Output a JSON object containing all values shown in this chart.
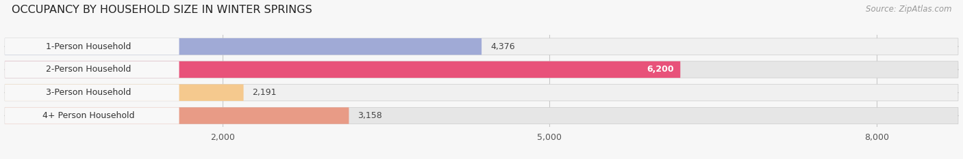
{
  "title": "OCCUPANCY BY HOUSEHOLD SIZE IN WINTER SPRINGS",
  "source": "Source: ZipAtlas.com",
  "categories": [
    "1-Person Household",
    "2-Person Household",
    "3-Person Household",
    "4+ Person Household"
  ],
  "values": [
    4376,
    6200,
    2191,
    3158
  ],
  "bar_colors": [
    "#a0aad6",
    "#e8527a",
    "#f5c98e",
    "#e89b86"
  ],
  "row_bg_light": "#f0f0f0",
  "row_bg_dark": "#e6e6e6",
  "label_bg_color": "#f8f8f8",
  "xlim": [
    0,
    8750
  ],
  "xticks": [
    2000,
    5000,
    8000
  ],
  "xtick_labels": [
    "2,000",
    "5,000",
    "8,000"
  ],
  "bar_height": 0.72,
  "title_fontsize": 11.5,
  "label_fontsize": 9,
  "value_fontsize": 9,
  "source_fontsize": 8.5
}
